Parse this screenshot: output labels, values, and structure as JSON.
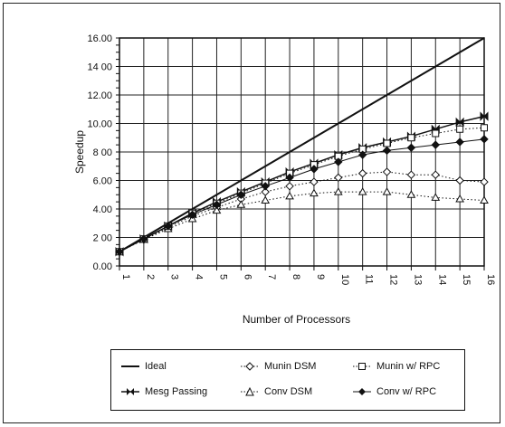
{
  "chart_data": {
    "type": "line",
    "title": "",
    "xlabel": "Number of Processors",
    "ylabel": "Speedup",
    "x": [
      1,
      2,
      3,
      4,
      5,
      6,
      7,
      8,
      9,
      10,
      11,
      12,
      13,
      14,
      15,
      16
    ],
    "xlim": [
      1,
      16
    ],
    "ylim": [
      0,
      16
    ],
    "yticks": [
      "0.00",
      "2 00",
      "4.00",
      "6.00",
      "8 00",
      "10.00",
      "12.00",
      "14 00",
      "16.00"
    ],
    "xticks": [
      "1",
      "2",
      "3",
      "4",
      "5",
      "6",
      "7",
      "8",
      "9",
      "10",
      "11",
      "12",
      "13",
      "14",
      "15",
      "16"
    ],
    "grid": true,
    "legend_position": "bottom",
    "series": [
      {
        "name": "Ideal",
        "marker": "none",
        "values": [
          1,
          2,
          3,
          4,
          5,
          6,
          7,
          8,
          9,
          10,
          11,
          12,
          13,
          14,
          15,
          16
        ]
      },
      {
        "name": "Mesg Passing",
        "marker": "bowtie",
        "values": [
          1,
          1.9,
          2.8,
          3.7,
          4.5,
          5.2,
          5.9,
          6.6,
          7.2,
          7.8,
          8.3,
          8.7,
          9.1,
          9.6,
          10.1,
          10.5
        ]
      },
      {
        "name": "Munin DSM",
        "marker": "diamond-open",
        "values": [
          1,
          1.85,
          2.7,
          3.5,
          4.1,
          4.7,
          5.2,
          5.6,
          5.9,
          6.2,
          6.5,
          6.6,
          6.4,
          6.4,
          6.0,
          5.9
        ]
      },
      {
        "name": "Conv DSM",
        "marker": "triangle",
        "values": [
          1,
          1.85,
          2.6,
          3.3,
          3.9,
          4.3,
          4.6,
          4.9,
          5.1,
          5.2,
          5.2,
          5.2,
          5.0,
          4.8,
          4.7,
          4.6
        ]
      },
      {
        "name": "Munin w/ RPC",
        "marker": "square-open",
        "values": [
          1,
          1.9,
          2.8,
          3.7,
          4.4,
          5.1,
          5.8,
          6.5,
          7.1,
          7.7,
          8.2,
          8.6,
          9.0,
          9.3,
          9.6,
          9.7
        ]
      },
      {
        "name": "Conv w/ RPC",
        "marker": "diamond-filled",
        "values": [
          1,
          1.9,
          2.8,
          3.6,
          4.3,
          5.0,
          5.6,
          6.2,
          6.8,
          7.3,
          7.8,
          8.1,
          8.3,
          8.5,
          8.7,
          8.9
        ]
      }
    ]
  },
  "legend": {
    "items": [
      "Ideal",
      "Mesg Passing",
      "Munin DSM",
      "Conv DSM",
      "Munin w/ RPC",
      "Conv w/ RPC"
    ]
  }
}
